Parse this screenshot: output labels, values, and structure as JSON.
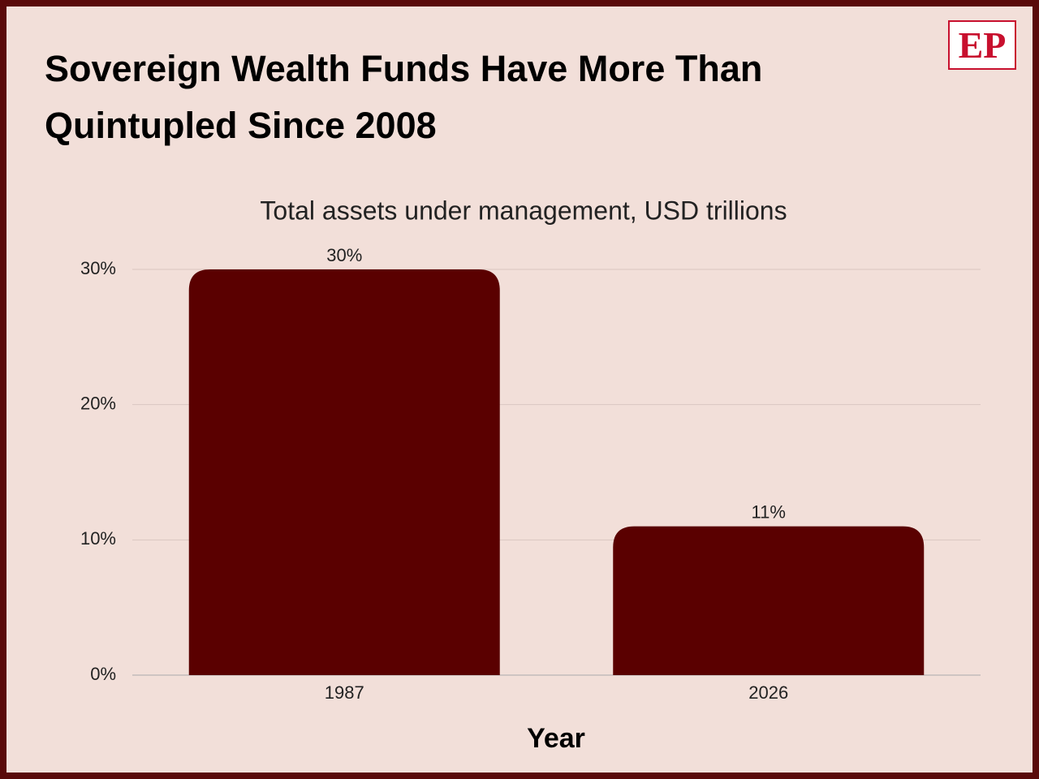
{
  "logo": "EP",
  "chart_data": {
    "type": "bar",
    "title": "Sovereign Wealth Funds Have More Than Quintupled Since 2008",
    "subtitle": "Total assets under management, USD trillions",
    "x_label": "Year",
    "categories": [
      "1987",
      "2026"
    ],
    "values": [
      30,
      11
    ],
    "value_labels": [
      "30%",
      "11%"
    ],
    "color": "#5a0000",
    "ylim": [
      0,
      30
    ],
    "yticks": [
      {
        "value": 0,
        "label": "0%"
      },
      {
        "value": 10,
        "label": "10%"
      },
      {
        "value": 20,
        "label": "20%"
      },
      {
        "value": 30,
        "label": "30%"
      }
    ],
    "grid": true
  }
}
